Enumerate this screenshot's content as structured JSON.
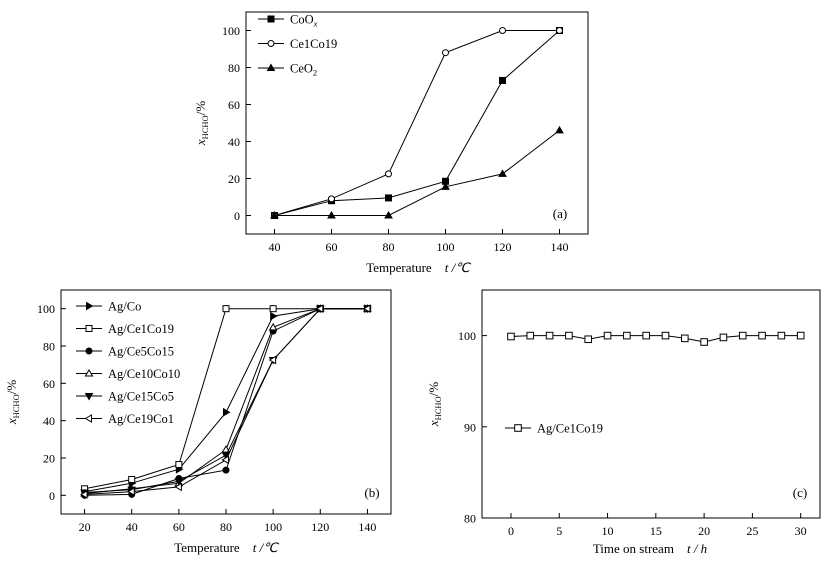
{
  "figure": {
    "colors": {
      "line": "#000000",
      "background": "#ffffff"
    }
  },
  "chart_data": [
    {
      "id": "a",
      "type": "line",
      "panel_label": "(a)",
      "xlabel": "Temperature",
      "xunit": "t /℃",
      "ylabel": "x",
      "ylabel_sub": "HCHO",
      "ylabel_unit": "/%",
      "xlim": [
        30,
        150
      ],
      "ylim": [
        -10,
        110
      ],
      "xticks": [
        40,
        60,
        80,
        100,
        120,
        140
      ],
      "yticks": [
        0,
        20,
        40,
        60,
        80,
        100
      ],
      "legend_position": "top-left",
      "series": [
        {
          "name": "CoO",
          "name_sub": "x",
          "marker": "square-filled",
          "x": [
            40,
            60,
            80,
            100,
            120,
            140
          ],
          "y": [
            0,
            8,
            9.5,
            18.5,
            73,
            100
          ]
        },
        {
          "name": "Ce1Co19",
          "marker": "circle-open",
          "x": [
            40,
            60,
            80,
            100,
            120,
            140
          ],
          "y": [
            0,
            9,
            22.5,
            88,
            100,
            100
          ]
        },
        {
          "name": "CeO",
          "name_sub": "2",
          "marker": "triangle-up-filled",
          "x": [
            40,
            60,
            80,
            100,
            120,
            140
          ],
          "y": [
            0,
            0,
            0,
            15.5,
            22.5,
            46
          ]
        }
      ]
    },
    {
      "id": "b",
      "type": "line",
      "panel_label": "(b)",
      "xlabel": "Temperature",
      "xunit": "t /℃",
      "ylabel": "x",
      "ylabel_sub": "HCHO",
      "ylabel_unit": "/%",
      "xlim": [
        10,
        150
      ],
      "ylim": [
        -10,
        110
      ],
      "xticks": [
        20,
        40,
        60,
        80,
        100,
        120,
        140
      ],
      "yticks": [
        0,
        20,
        40,
        60,
        80,
        100
      ],
      "legend_position": "top-left",
      "series": [
        {
          "name": "Ag/Co",
          "marker": "triangle-right-filled",
          "x": [
            20,
            40,
            60,
            80,
            100,
            120,
            140
          ],
          "y": [
            2,
            6.5,
            14,
            44.5,
            96,
            100,
            100
          ]
        },
        {
          "name": "Ag/Ce1Co19",
          "marker": "square-open",
          "x": [
            20,
            40,
            60,
            80,
            100,
            120,
            140
          ],
          "y": [
            3.5,
            8.5,
            16.5,
            100,
            100,
            100,
            100
          ]
        },
        {
          "name": "Ag/Ce5Co15",
          "marker": "circle-filled",
          "x": [
            20,
            40,
            60,
            80,
            100,
            120,
            140
          ],
          "y": [
            0,
            0.5,
            9,
            13.5,
            88,
            100,
            100
          ]
        },
        {
          "name": "Ag/Ce10Co10",
          "marker": "triangle-up-open",
          "x": [
            20,
            40,
            60,
            80,
            100,
            120,
            140
          ],
          "y": [
            1,
            3.5,
            6.5,
            24.5,
            90,
            100,
            100
          ]
        },
        {
          "name": "Ag/Ce15Co5",
          "marker": "triangle-down-filled",
          "x": [
            20,
            40,
            60,
            80,
            100,
            120,
            140
          ],
          "y": [
            1.5,
            3,
            7.5,
            21.5,
            72.5,
            100,
            100
          ]
        },
        {
          "name": "Ag/Ce19Co1",
          "marker": "triangle-left-open",
          "x": [
            20,
            40,
            60,
            80,
            100,
            120,
            140
          ],
          "y": [
            0.5,
            2,
            4.5,
            19,
            72.5,
            100,
            100
          ]
        }
      ]
    },
    {
      "id": "c",
      "type": "line",
      "panel_label": "(c)",
      "xlabel": "Time on stream",
      "xunit": "t / h",
      "ylabel": "x",
      "ylabel_sub": "HCHO",
      "ylabel_unit": "/%",
      "xlim": [
        -3,
        32
      ],
      "ylim": [
        80,
        105
      ],
      "xticks": [
        0,
        5,
        10,
        15,
        20,
        25,
        30
      ],
      "yticks": [
        80,
        90,
        100
      ],
      "legend_position": "center-left",
      "series": [
        {
          "name": "Ag/Ce1Co19",
          "marker": "square-open",
          "x": [
            0,
            2,
            4,
            6,
            8,
            10,
            12,
            14,
            16,
            18,
            20,
            22,
            24,
            26,
            28,
            30
          ],
          "y": [
            99.9,
            100,
            100,
            100,
            99.6,
            100,
            100,
            100,
            100,
            99.7,
            99.3,
            99.8,
            100,
            100,
            100,
            100
          ]
        }
      ]
    }
  ]
}
